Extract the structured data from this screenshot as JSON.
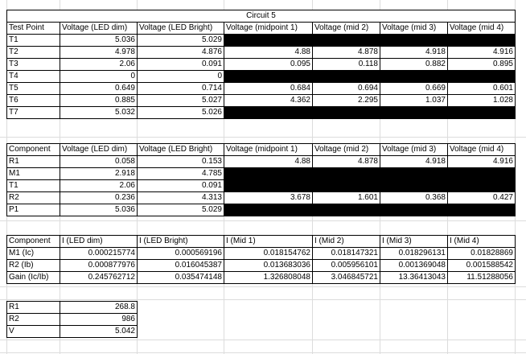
{
  "circuit_title": "Circuit 5",
  "table1": {
    "headers": [
      "Test Point",
      "Voltage (LED dim)",
      "Voltage (LED Bright)",
      "Voltage (midpoint 1)",
      "Voltage (mid 2)",
      "Voltage (mid 3)",
      "Voltage (mid 4)"
    ],
    "rows": [
      [
        "T1",
        "5.036",
        "5.029",
        null,
        null,
        null,
        null
      ],
      [
        "T2",
        "4.978",
        "4.876",
        "4.88",
        "4.878",
        "4.918",
        "4.916"
      ],
      [
        "T3",
        "2.06",
        "0.091",
        "0.095",
        "0.118",
        "0.882",
        "0.895"
      ],
      [
        "T4",
        "0",
        "0",
        null,
        null,
        null,
        null
      ],
      [
        "T5",
        "0.649",
        "0.714",
        "0.684",
        "0.694",
        "0.669",
        "0.601"
      ],
      [
        "T6",
        "0.885",
        "5.027",
        "4.362",
        "2.295",
        "1.037",
        "1.028"
      ],
      [
        "T7",
        "5.032",
        "5.026",
        null,
        null,
        null,
        null
      ]
    ]
  },
  "table2": {
    "headers": [
      "Component",
      "Voltage (LED dim)",
      "Voltage (LED Bright)",
      "Voltage (midpoint 1)",
      "Voltage (mid 2)",
      "Voltage (mid 3)",
      "Voltage (mid 4)"
    ],
    "rows": [
      [
        "R1",
        "0.058",
        "0.153",
        "4.88",
        "4.878",
        "4.918",
        "4.916"
      ],
      [
        "M1",
        "2.918",
        "4.785",
        null,
        null,
        null,
        null
      ],
      [
        "T1",
        "2.06",
        "0.091",
        null,
        null,
        null,
        null
      ],
      [
        "R2",
        "0.236",
        "4.313",
        "3.678",
        "1.601",
        "0.368",
        "0.427"
      ],
      [
        "P1",
        "5.036",
        "5.029",
        null,
        null,
        null,
        null
      ]
    ]
  },
  "table3": {
    "headers": [
      "Component",
      "I (LED dim)",
      "I (LED Bright)",
      "I (Mid 1)",
      "I (Mid 2)",
      "I (Mid 3)",
      "I (Mid 4)"
    ],
    "rows": [
      [
        "M1 (Ic)",
        "0.000215774",
        "0.000569196",
        "0.018154762",
        "0.018147321",
        "0.018296131",
        "0.01828869"
      ],
      [
        "R2 (Ib)",
        "0.000877976",
        "0.016045387",
        "0.013683036",
        "0.005956101",
        "0.001369048",
        "0.001588542"
      ],
      [
        "Gain (Ic/Ib)",
        "0.245762712",
        "0.035474148",
        "1.326808048",
        "3.046845721",
        "13.36413043",
        "11.51288056"
      ]
    ]
  },
  "table4": {
    "rows": [
      [
        "R1",
        "268.8"
      ],
      [
        "R2",
        "986"
      ],
      [
        "V",
        "5.042"
      ]
    ]
  }
}
